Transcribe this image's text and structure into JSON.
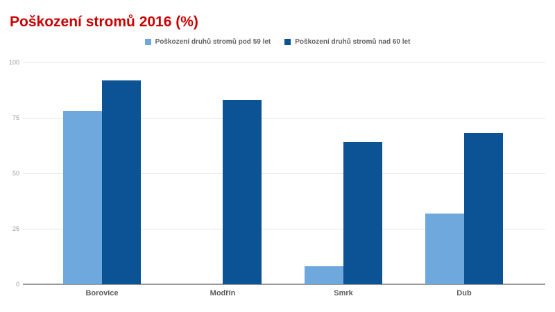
{
  "chart_data": {
    "type": "bar",
    "title": "Poškození stromů 2016 (%)",
    "categories": [
      "Borovice",
      "Modřín",
      "Smrk",
      "Dub"
    ],
    "series": [
      {
        "name": "Poškození druhů stromů pod 59 let",
        "color": "#6fa8dc",
        "values": [
          78,
          0,
          8,
          32
        ]
      },
      {
        "name": "Poškození druhů stromů nad 60 let",
        "color": "#0b5394",
        "values": [
          92,
          83,
          64,
          68
        ]
      }
    ],
    "xlabel": "",
    "ylabel": "",
    "ylim": [
      0,
      100
    ],
    "yticks": [
      0,
      25,
      50,
      75,
      100
    ],
    "grid": true,
    "legend_position": "top",
    "colors": {
      "title": "#cc0000",
      "gridline": "#e6e6e6",
      "axis_line": "#999999",
      "ytick_label": "#9e9e9e",
      "xcat_label": "#5c5c5c",
      "legend_label": "#636363",
      "background": "#ffffff"
    }
  }
}
